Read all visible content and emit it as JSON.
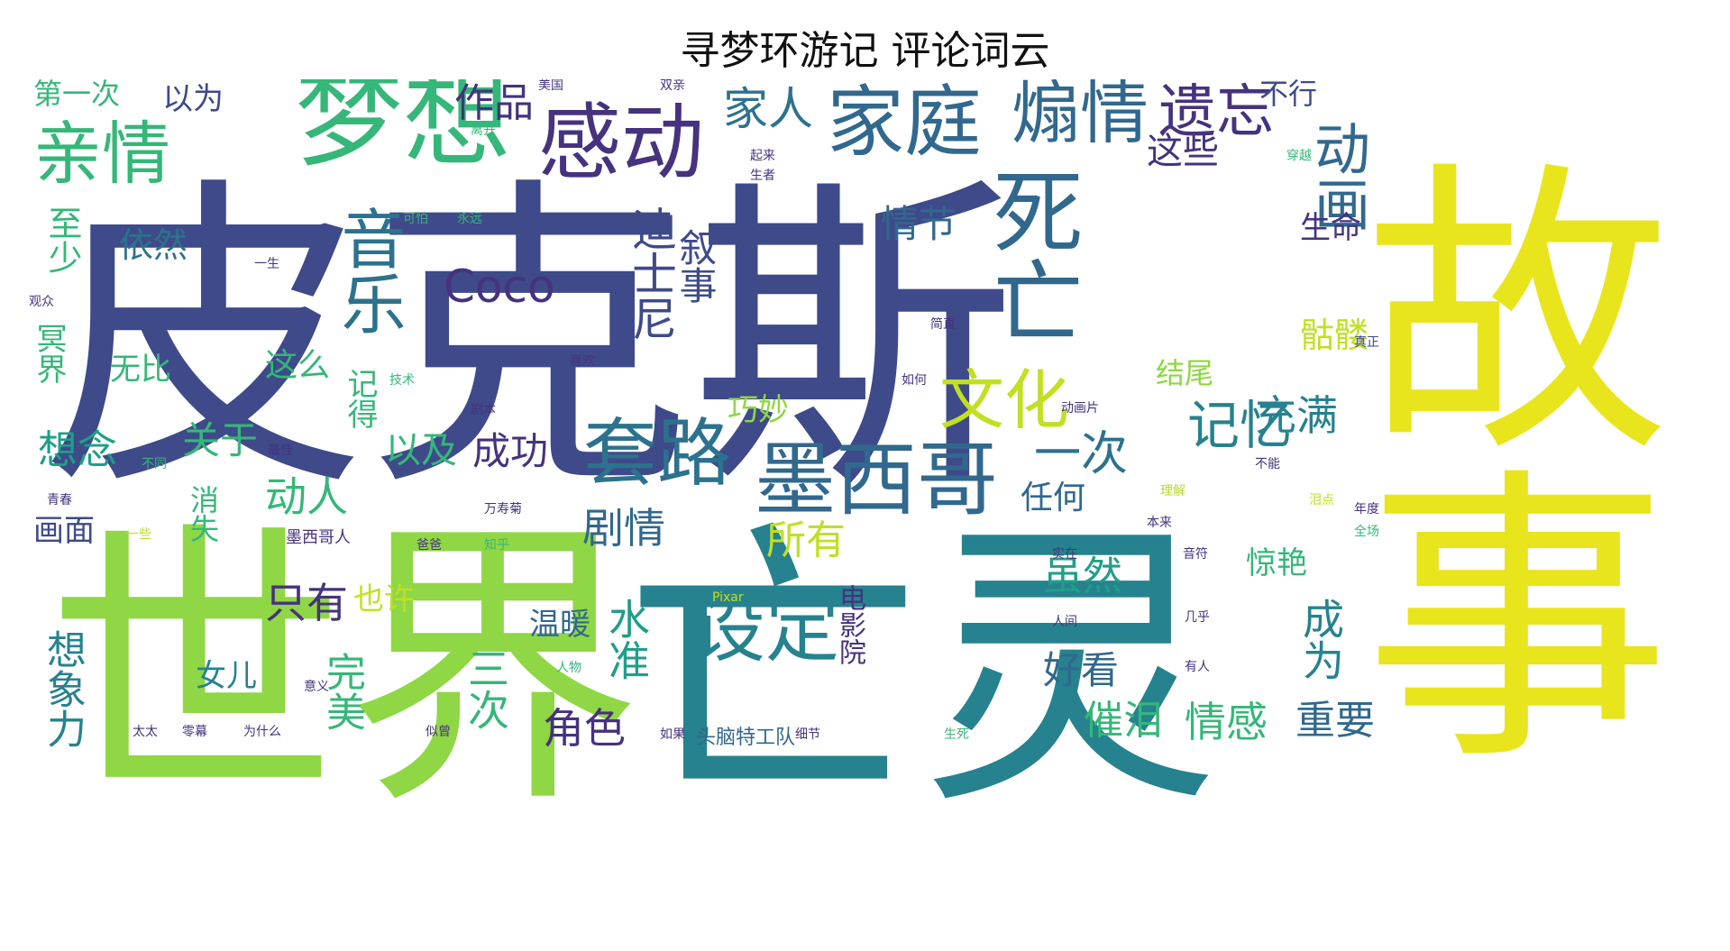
{
  "title": "寻梦环游记 评论词云",
  "palette": {
    "deep_purple": "#46327e",
    "indigo": "#3e4a89",
    "blue": "#31688e",
    "teal": "#26828e",
    "green_teal": "#1f9e89",
    "green": "#35b779",
    "light_green": "#6ece58",
    "lime": "#b5de2b",
    "yellow": "#fde725"
  },
  "words": [
    {
      "text": "皮克斯",
      "color": "#3e4a89"
    },
    {
      "text": "故事",
      "color": "#e9e51d"
    },
    {
      "text": "世界",
      "color": "#8fd744"
    },
    {
      "text": "亡灵",
      "color": "#26828e"
    },
    {
      "text": "梦想",
      "color": "#35b779"
    },
    {
      "text": "感动",
      "color": "#46327e"
    },
    {
      "text": "家庭",
      "color": "#31688e"
    },
    {
      "text": "煽情",
      "color": "#31688e"
    },
    {
      "text": "亲情",
      "color": "#35b779"
    },
    {
      "text": "遗忘",
      "color": "#46327e"
    },
    {
      "text": "死亡",
      "color": "#31688e"
    },
    {
      "text": "动画",
      "color": "#31688e"
    },
    {
      "text": "音乐",
      "color": "#2c728e"
    },
    {
      "text": "Coco",
      "color": "#46327e"
    },
    {
      "text": "套路",
      "color": "#2c728e"
    },
    {
      "text": "墨西哥",
      "color": "#31688e"
    },
    {
      "text": "文化",
      "color": "#c2df23"
    },
    {
      "text": "设定",
      "color": "#26828e"
    },
    {
      "text": "作品",
      "color": "#46327e"
    },
    {
      "text": "家人",
      "color": "#2c728e"
    },
    {
      "text": "这些",
      "color": "#46327e"
    },
    {
      "text": "迪士尼",
      "color": "#3e4a89"
    },
    {
      "text": "叙事",
      "color": "#3e4a89"
    },
    {
      "text": "第一次",
      "color": "#35b779"
    },
    {
      "text": "以为",
      "color": "#3e4a89"
    },
    {
      "text": "不行",
      "color": "#3e4a89"
    },
    {
      "text": "至少",
      "color": "#35b779"
    },
    {
      "text": "依然",
      "color": "#2c728e"
    },
    {
      "text": "情节",
      "color": "#31688e"
    },
    {
      "text": "生命",
      "color": "#46327e"
    },
    {
      "text": "记忆",
      "color": "#26828e"
    },
    {
      "text": "一次",
      "color": "#2c728e"
    },
    {
      "text": "充满",
      "color": "#26828e"
    },
    {
      "text": "骷髅",
      "color": "#c2df23"
    },
    {
      "text": "冥界",
      "color": "#35b779"
    },
    {
      "text": "无比",
      "color": "#35b779"
    },
    {
      "text": "这么",
      "color": "#35b779"
    },
    {
      "text": "记得",
      "color": "#35b779"
    },
    {
      "text": "关于",
      "color": "#35b779"
    },
    {
      "text": "想念",
      "color": "#1f9e89"
    },
    {
      "text": "以及",
      "color": "#35b779"
    },
    {
      "text": "成功",
      "color": "#46327e"
    },
    {
      "text": "巧妙",
      "color": "#8fd744"
    },
    {
      "text": "结尾",
      "color": "#8fd744"
    },
    {
      "text": "动人",
      "color": "#35b779"
    },
    {
      "text": "任何",
      "color": "#31688e"
    },
    {
      "text": "剧情",
      "color": "#31688e"
    },
    {
      "text": "所有",
      "color": "#c2df23"
    },
    {
      "text": "虽然",
      "color": "#1f9e89"
    },
    {
      "text": "惊艳",
      "color": "#35b779"
    },
    {
      "text": "画面",
      "color": "#3e4a89"
    },
    {
      "text": "消失",
      "color": "#35b779"
    },
    {
      "text": "只有",
      "color": "#46327e"
    },
    {
      "text": "也许",
      "color": "#c2df23"
    },
    {
      "text": "温暖",
      "color": "#31688e"
    },
    {
      "text": "电影院",
      "color": "#46327e"
    },
    {
      "text": "成为",
      "color": "#26828e"
    },
    {
      "text": "想象力",
      "color": "#26828e"
    },
    {
      "text": "完美",
      "color": "#35b779"
    },
    {
      "text": "女儿",
      "color": "#26828e"
    },
    {
      "text": "三次",
      "color": "#35b779"
    },
    {
      "text": "水准",
      "color": "#1f9e89"
    },
    {
      "text": "好看",
      "color": "#31688e"
    },
    {
      "text": "角色",
      "color": "#46327e"
    },
    {
      "text": "催泪",
      "color": "#35b779"
    },
    {
      "text": "情感",
      "color": "#35b779"
    },
    {
      "text": "重要",
      "color": "#31688e"
    },
    {
      "text": "头脑特工队",
      "color": "#31688e"
    },
    {
      "text": "墨西哥人",
      "color": "#46327e"
    },
    {
      "text": "一些",
      "color": "#c2df23"
    },
    {
      "text": "理解",
      "color": "#b5de2b"
    },
    {
      "text": "Pixar",
      "color": "#c2df23"
    },
    {
      "text": "美国",
      "color": "#46327e"
    },
    {
      "text": "离开",
      "color": "#35b779"
    },
    {
      "text": "真正",
      "color": "#3e4a89"
    },
    {
      "text": "人物",
      "color": "#35b779"
    },
    {
      "text": "意义",
      "color": "#46327e"
    },
    {
      "text": "为什么",
      "color": "#46327e"
    },
    {
      "text": "太太",
      "color": "#46327e"
    },
    {
      "text": "零幕",
      "color": "#46327e"
    },
    {
      "text": "一生",
      "color": "#46327e"
    },
    {
      "text": "生者",
      "color": "#46327e"
    },
    {
      "text": "几乎",
      "color": "#46327e"
    },
    {
      "text": "有人",
      "color": "#46327e"
    },
    {
      "text": "人间",
      "color": "#46327e"
    },
    {
      "text": "观众",
      "color": "#46327e"
    },
    {
      "text": "如何",
      "color": "#46327e"
    },
    {
      "text": "喜欢",
      "color": "#46327e"
    },
    {
      "text": "技术",
      "color": "#35b779"
    },
    {
      "text": "剧本",
      "color": "#46327e"
    },
    {
      "text": "不同",
      "color": "#35b779"
    },
    {
      "text": "最佳",
      "color": "#46327e"
    },
    {
      "text": "青春",
      "color": "#46327e"
    },
    {
      "text": "永远",
      "color": "#35b779"
    },
    {
      "text": "不能",
      "color": "#46327e"
    },
    {
      "text": "全场",
      "color": "#35b779"
    },
    {
      "text": "年度",
      "color": "#46327e"
    },
    {
      "text": "泪点",
      "color": "#c2df23"
    },
    {
      "text": "本来",
      "color": "#46327e"
    },
    {
      "text": "简直",
      "color": "#46327e"
    },
    {
      "text": "音符",
      "color": "#46327e"
    },
    {
      "text": "动画片",
      "color": "#46327e"
    },
    {
      "text": "起来",
      "color": "#46327e"
    },
    {
      "text": "生死",
      "color": "#35b779"
    },
    {
      "text": "爸爸",
      "color": "#46327e"
    },
    {
      "text": "实在",
      "color": "#46327e"
    },
    {
      "text": "如果",
      "color": "#46327e"
    },
    {
      "text": "似曾",
      "color": "#46327e"
    },
    {
      "text": "万寿菊",
      "color": "#46327e"
    },
    {
      "text": "双亲",
      "color": "#46327e"
    },
    {
      "text": "知乎",
      "color": "#35b779"
    },
    {
      "text": "穿越",
      "color": "#35b779"
    },
    {
      "text": "可怕",
      "color": "#35b779"
    },
    {
      "text": "细节",
      "color": "#46327e"
    }
  ]
}
